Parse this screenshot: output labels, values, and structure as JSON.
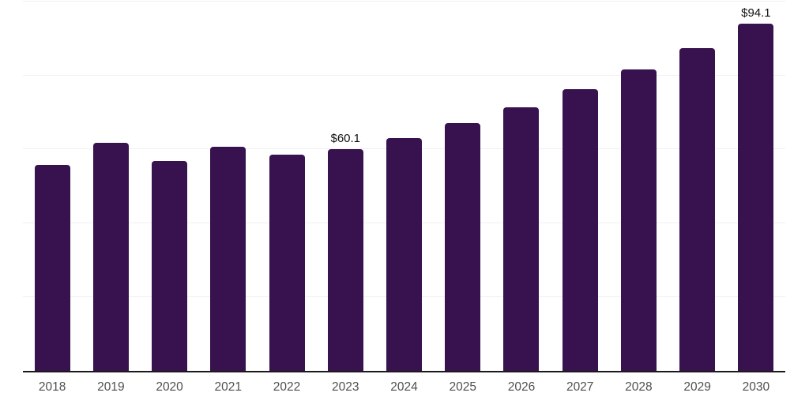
{
  "chart_data": {
    "type": "bar",
    "title": "",
    "xlabel": "",
    "ylabel": "",
    "categories": [
      "2018",
      "2019",
      "2020",
      "2021",
      "2022",
      "2023",
      "2024",
      "2025",
      "2026",
      "2027",
      "2028",
      "2029",
      "2030"
    ],
    "values": [
      55.7,
      61.8,
      56.9,
      60.7,
      58.6,
      60.1,
      63.0,
      67.1,
      71.3,
      76.3,
      81.6,
      87.5,
      94.1
    ],
    "data_labels": [
      "",
      "",
      "",
      "",
      "",
      "$60.1",
      "",
      "",
      "",
      "",
      "",
      "",
      "$94.1"
    ],
    "ylim": [
      0,
      100
    ],
    "gridlines": [
      20,
      40,
      60,
      80,
      100
    ],
    "grid": "horizontal-only",
    "legend": "none",
    "y_axis_ticks": "hidden",
    "colors": {
      "bar": "#38124E",
      "axis_line": "#1a1a1a",
      "gridline": "#f0f0f0",
      "tick_label": "#4f4f4f",
      "data_label": "#111111",
      "background": "#ffffff"
    }
  }
}
